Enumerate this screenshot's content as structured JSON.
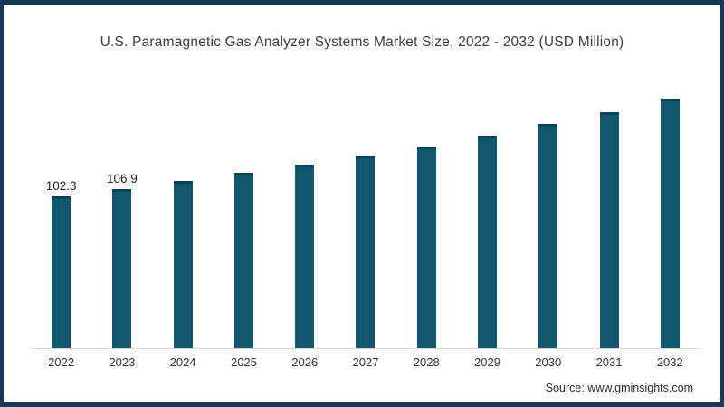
{
  "source": {
    "text": "Source: www.gminsights.com"
  },
  "colors": {
    "bar": "#0f566e",
    "bar_top_edge": "#0a4258",
    "frame_border": "#16395b",
    "axis_line": "#d9d9d9",
    "title_text": "#3c3c3c",
    "value_label_text": "#1f1f1f",
    "tick_label_text": "#333333"
  },
  "chart_data": {
    "type": "bar",
    "title": "U.S. Paramagnetic Gas Analyzer Systems Market Size, 2022 - 2032 (USD Million)",
    "xlabel": "",
    "ylabel": "",
    "categories": [
      "2022",
      "2023",
      "2024",
      "2025",
      "2026",
      "2027",
      "2028",
      "2029",
      "2030",
      "2031",
      "2032"
    ],
    "values": [
      102.3,
      106.9,
      112.5,
      117.6,
      123.4,
      129.3,
      135.7,
      142.6,
      150.7,
      158.2,
      167.3
    ],
    "value_labels": [
      "102.3",
      "106.9",
      "",
      "",
      "",
      "",
      "",
      "",
      "",
      "",
      ""
    ],
    "ylim": [
      0,
      170
    ],
    "grid": false,
    "legend": false,
    "y_axis_visible": false,
    "baseline_visible": true
  }
}
